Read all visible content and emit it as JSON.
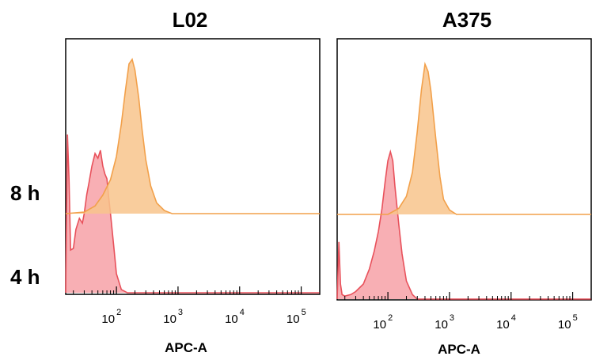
{
  "row_labels": [
    "8 h",
    "4 h"
  ],
  "chart_data": [
    {
      "type": "area",
      "title": "L02",
      "xlabel": "APC-A",
      "ylabel": "",
      "x_scale": "log",
      "xlim": [
        15,
        200000
      ],
      "ticks": [
        {
          "value": 100,
          "base": "10",
          "exp": "2"
        },
        {
          "value": 1000,
          "base": "10",
          "exp": "3"
        },
        {
          "value": 10000,
          "base": "10",
          "exp": "4"
        },
        {
          "value": 100000,
          "base": "10",
          "exp": "5"
        }
      ],
      "series": [
        {
          "color": "#f2a04a",
          "fill": "#f8c48c",
          "row": "8 h",
          "x": [
            15,
            30,
            45,
            60,
            80,
            100,
            120,
            140,
            160,
            180,
            200,
            230,
            260,
            300,
            360,
            450,
            600,
            800,
            200000
          ],
          "y": [
            0,
            0.01,
            0.05,
            0.12,
            0.22,
            0.37,
            0.58,
            0.8,
            0.97,
            1.0,
            0.93,
            0.75,
            0.55,
            0.35,
            0.18,
            0.07,
            0.02,
            0,
            0
          ]
        },
        {
          "color": "#e8515b",
          "fill": "#f7a1a7",
          "row": "4 h",
          "x": [
            15,
            16,
            17,
            18,
            20,
            22,
            25,
            28,
            30,
            33,
            36,
            40,
            45,
            50,
            55,
            60,
            65,
            70,
            75,
            80,
            90,
            100,
            120,
            150,
            200000
          ],
          "y": [
            0,
            1.0,
            0.72,
            0.27,
            0.28,
            0.4,
            0.47,
            0.44,
            0.5,
            0.62,
            0.7,
            0.8,
            0.88,
            0.85,
            0.9,
            0.8,
            0.75,
            0.72,
            0.6,
            0.5,
            0.3,
            0.12,
            0.02,
            0,
            0
          ]
        }
      ]
    },
    {
      "type": "area",
      "title": "A375",
      "xlabel": "APC-A",
      "ylabel": "",
      "x_scale": "log",
      "xlim": [
        15,
        200000
      ],
      "ticks": [
        {
          "value": 100,
          "base": "10",
          "exp": "2"
        },
        {
          "value": 1000,
          "base": "10",
          "exp": "3"
        },
        {
          "value": 10000,
          "base": "10",
          "exp": "4"
        },
        {
          "value": 100000,
          "base": "10",
          "exp": "5"
        }
      ],
      "series": [
        {
          "color": "#f2a04a",
          "fill": "#f8c48c",
          "row": "8 h",
          "x": [
            15,
            100,
            150,
            200,
            250,
            300,
            350,
            400,
            450,
            500,
            600,
            700,
            800,
            1000,
            1300,
            200000
          ],
          "y": [
            0,
            0,
            0.04,
            0.12,
            0.28,
            0.55,
            0.83,
            1.0,
            0.95,
            0.82,
            0.5,
            0.25,
            0.1,
            0.03,
            0,
            0
          ]
        },
        {
          "color": "#e8515b",
          "fill": "#f7a1a7",
          "row": "4 h",
          "x": [
            15,
            16,
            17,
            18,
            20,
            25,
            30,
            40,
            50,
            60,
            70,
            80,
            90,
            100,
            110,
            120,
            130,
            150,
            170,
            200,
            250,
            300,
            200000
          ],
          "y": [
            0,
            0.38,
            0.1,
            0.03,
            0.02,
            0.03,
            0.05,
            0.1,
            0.2,
            0.32,
            0.45,
            0.6,
            0.78,
            0.92,
            0.98,
            0.92,
            0.75,
            0.5,
            0.3,
            0.12,
            0.03,
            0,
            0
          ]
        }
      ]
    }
  ]
}
